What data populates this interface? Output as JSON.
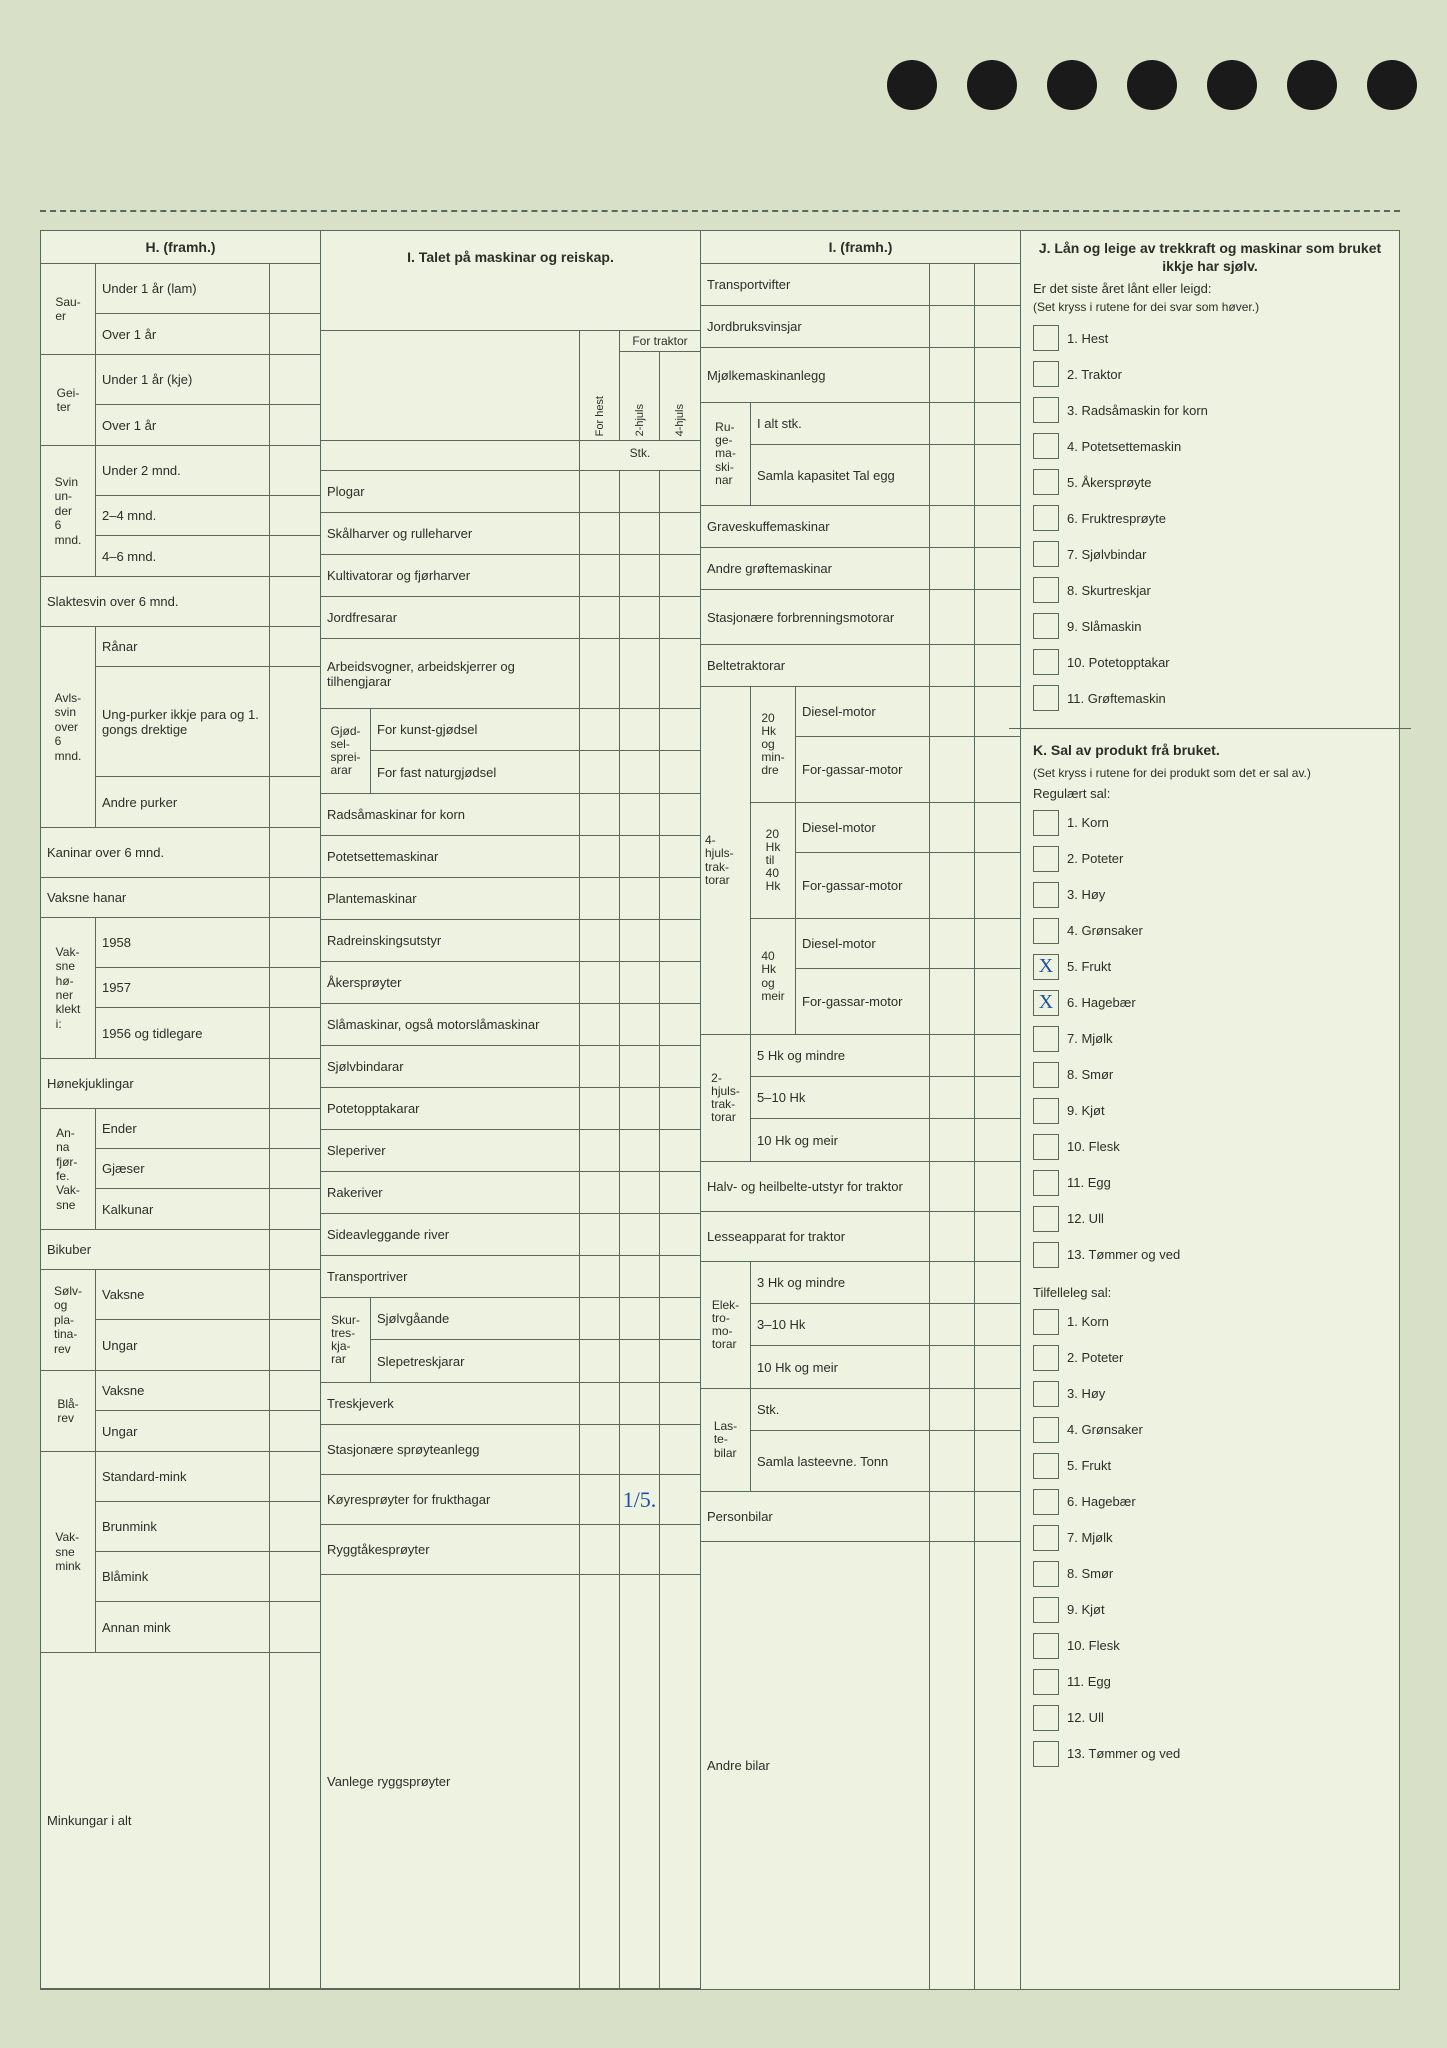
{
  "binder_holes": 7,
  "H": {
    "title": "H. (framh.)",
    "groups": [
      {
        "stub": "Sau-\ner",
        "rows": [
          "Under 1 år (lam)",
          "Over 1 år"
        ]
      },
      {
        "stub": "Gei-\nter",
        "rows": [
          "Under 1 år (kje)",
          "Over 1 år"
        ]
      },
      {
        "stub": "Svin\nun-\nder\n6\nmnd.",
        "rows": [
          "Under 2 mnd.",
          "2–4 mnd.",
          "4–6 mnd."
        ]
      }
    ],
    "singles1": [
      "Slaktesvin over 6 mnd."
    ],
    "avlssvin": {
      "stub": "Avls-\nsvin\nover\n6\nmnd.",
      "rows": [
        "Rånar",
        "Ung-purker ikkje para og 1. gongs drektige",
        "Andre purker"
      ]
    },
    "singles2": [
      "Kaninar over 6 mnd.",
      "Vaksne hanar"
    ],
    "honer": {
      "stub": "Vak-\nsne\nhø-\nner\nklekt\ni:",
      "rows": [
        "1958",
        "1957",
        "1956 og tidlegare"
      ]
    },
    "singles3": [
      "Hønekjuklingar"
    ],
    "fjorfe": {
      "stub": "An-\nna\nfjør-\nfe.\nVak-\nsne",
      "rows": [
        "Ender",
        "Gjæser",
        "Kalkunar"
      ]
    },
    "singles4": [
      "Bikuber"
    ],
    "solv": {
      "stub": "Sølv-\nog\npla-\ntina-\nrev",
      "rows": [
        "Vaksne",
        "Ungar"
      ]
    },
    "bla": {
      "stub": "Blå-\nrev",
      "rows": [
        "Vaksne",
        "Ungar"
      ]
    },
    "mink": {
      "stub": "Vak-\nsne\nmink",
      "rows": [
        "Standard-mink",
        "Brunmink",
        "Blåmink",
        "Annan mink"
      ]
    },
    "singles5": [
      "Minkungar i alt"
    ]
  },
  "I1": {
    "title": "I. Talet på maskinar og reiskap.",
    "for_traktor": "For traktor",
    "for_hest": "For hest",
    "hjul2": "2-hjuls",
    "hjul4": "4-hjuls",
    "stk": "Stk.",
    "rows_top": [
      "Plogar",
      "Skålharver og rulleharver",
      "Kultivatorar og fjørharver",
      "Jordfresarar"
    ],
    "row_arbeids": "Arbeidsvogner, arbeidskjerrer og tilhengjarar",
    "gjodsel": {
      "stub": "Gjød-\nsel-\nsprei-\narar",
      "rows": [
        "For kunst-gjødsel",
        "For fast naturgjødsel"
      ]
    },
    "rows_mid": [
      "Radsåmaskinar for korn",
      "Potetsettemaskinar",
      "Plantemaskinar",
      "Radreinskingsutstyr",
      "Åkersprøyter",
      "Slåmaskinar, også motorslåmaskinar",
      "Sjølvbindarar",
      "Potetopptakarar",
      "Sleperiver",
      "Rakeriver",
      "Sideavleggande river",
      "Transportriver"
    ],
    "skur": {
      "stub": "Skur-\ntres-\nkja-\nrar",
      "rows": [
        "Sjølvgåande",
        "Slepetreskjarar"
      ]
    },
    "rows_bot": [
      "Treskjeverk",
      "Stasjonære sprøyteanlegg",
      "Køyresprøyter for frukthagar",
      "Ryggtåkesprøyter",
      "Vanlege ryggsprøyter"
    ],
    "handwritten": {
      "koyrespr": "1/5."
    }
  },
  "I2": {
    "title": "I. (framh.)",
    "rows_top": [
      "Transportvifter",
      "Jordbruksvinsjar",
      "Mjølkemaskinanlegg"
    ],
    "ruge": {
      "stub": "Ru-\nge-\nma-\nski-\nnar",
      "rows": [
        "I alt stk.",
        "Samla kapasitet Tal egg"
      ]
    },
    "rows_mid": [
      "Graveskuffemaskinar",
      "Andre grøftemaskinar",
      "Stasjonære forbrenningsmotorar",
      "Beltetraktorar"
    ],
    "trak4": {
      "stub": "4-\nhjuls-\ntrak-\ntorar",
      "groups": [
        {
          "stub": "20\nHk\nog\nmin-\ndre",
          "rows": [
            "Diesel-motor",
            "For-gassar-motor"
          ]
        },
        {
          "stub": "20\nHk\ntil\n40\nHk",
          "rows": [
            "Diesel-motor",
            "For-gassar-motor"
          ]
        },
        {
          "stub": "40\nHk\nog\nmeir",
          "rows": [
            "Diesel-motor",
            "For-gassar-motor"
          ]
        }
      ]
    },
    "trak2": {
      "stub": "2-\nhjuls-\ntrak-\ntorar",
      "rows": [
        "5 Hk og mindre",
        "5–10 Hk",
        "10 Hk og meir"
      ]
    },
    "rows_halv": [
      "Halv- og heilbelte-utstyr for traktor",
      "Lesseapparat for traktor"
    ],
    "elektro": {
      "stub": "Elek-\ntro-\nmo-\ntorar",
      "rows": [
        "3 Hk og mindre",
        "3–10 Hk",
        "10 Hk og meir"
      ]
    },
    "laste": {
      "stub": "Las-\nte-\nbilar",
      "rows": [
        "Stk.",
        "Samla lasteevne. Tonn"
      ]
    },
    "rows_bot": [
      "Personbilar",
      "Andre bilar"
    ]
  },
  "J": {
    "title": "J. Lån og leige av trekkraft og maskinar som bruket ikkje har sjølv.",
    "sub": "Er det siste året lånt eller leigd:",
    "note": "(Set kryss i rutene for dei svar som høver.)",
    "items": [
      "1. Hest",
      "2. Traktor",
      "3. Radsåmaskin for korn",
      "4. Potetsettemaskin",
      "5. Åkersprøyte",
      "6. Fruktresprøyte",
      "7. Sjølvbindar",
      "8. Skurtreskjar",
      "9. Slåmaskin",
      "10. Potetopptakar",
      "11. Grøftemaskin"
    ]
  },
  "K": {
    "title": "K. Sal av produkt frå bruket.",
    "note": "(Set kryss i rutene for dei produkt som det er sal av.)",
    "reg_label": "Regulært sal:",
    "reg_items": [
      {
        "t": "1. Korn",
        "x": false
      },
      {
        "t": "2. Poteter",
        "x": false
      },
      {
        "t": "3. Høy",
        "x": false
      },
      {
        "t": "4. Grønsaker",
        "x": false
      },
      {
        "t": "5. Frukt",
        "x": true
      },
      {
        "t": "6. Hagebær",
        "x": true
      },
      {
        "t": "7. Mjølk",
        "x": false
      },
      {
        "t": "8. Smør",
        "x": false
      },
      {
        "t": "9. Kjøt",
        "x": false
      },
      {
        "t": "10. Flesk",
        "x": false
      },
      {
        "t": "11. Egg",
        "x": false
      },
      {
        "t": "12. Ull",
        "x": false
      },
      {
        "t": "13. Tømmer og ved",
        "x": false
      }
    ],
    "tilf_label": "Tilfelleleg sal:",
    "tilf_items": [
      "1. Korn",
      "2. Poteter",
      "3. Høy",
      "4. Grønsaker",
      "5. Frukt",
      "6. Hagebær",
      "7. Mjølk",
      "8. Smør",
      "9. Kjøt",
      "10. Flesk",
      "11. Egg",
      "12. Ull",
      "13. Tømmer og ved"
    ]
  }
}
